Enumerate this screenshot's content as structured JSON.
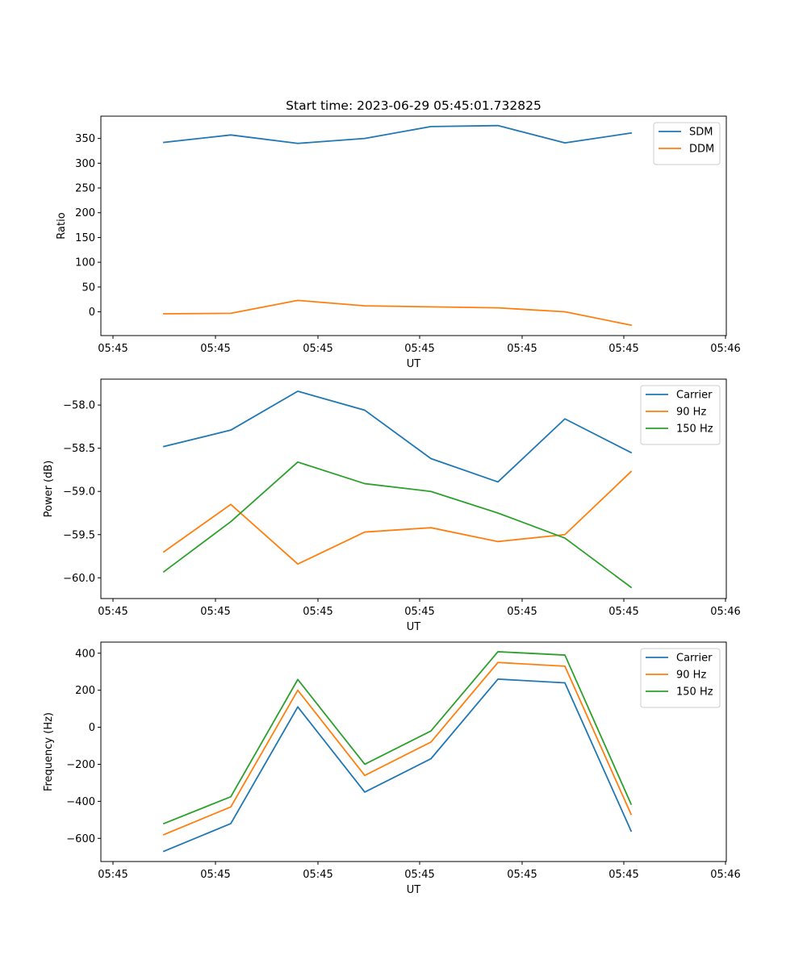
{
  "figure": {
    "title": "Start time: 2023-06-29 05:45:01.732825"
  },
  "chart_data": [
    {
      "type": "line",
      "xlabel": "UT",
      "ylabel": "Ratio",
      "x_tick_labels": [
        "05:45",
        "05:45",
        "05:45",
        "05:45",
        "05:45",
        "05:45",
        "05:46"
      ],
      "y_ticks": [
        0,
        50,
        100,
        150,
        200,
        250,
        300,
        350
      ],
      "ylim": [
        -48,
        395
      ],
      "legend": "top-right",
      "series": [
        {
          "name": "SDM",
          "color": "#1f77b4",
          "values": [
            342,
            357,
            340,
            350,
            374,
            376,
            341,
            361
          ]
        },
        {
          "name": "DDM",
          "color": "#ff7f0e",
          "values": [
            -4,
            -3,
            23,
            12,
            10,
            8,
            0,
            -27
          ]
        }
      ]
    },
    {
      "type": "line",
      "xlabel": "UT",
      "ylabel": "Power (dB)",
      "x_tick_labels": [
        "05:45",
        "05:45",
        "05:45",
        "05:45",
        "05:45",
        "05:45",
        "05:46"
      ],
      "y_ticks": [
        -60.0,
        -59.5,
        -59.0,
        -58.5,
        -58.0
      ],
      "y_tick_labels": [
        "−60.0",
        "−59.5",
        "−59.0",
        "−58.5",
        "−58.0"
      ],
      "ylim": [
        -60.24,
        -57.7
      ],
      "legend": "top-right",
      "series": [
        {
          "name": "Carrier",
          "color": "#1f77b4",
          "values": [
            -58.48,
            -58.29,
            -57.84,
            -58.06,
            -58.62,
            -58.89,
            -58.16,
            -58.55
          ]
        },
        {
          "name": "90 Hz",
          "color": "#ff7f0e",
          "values": [
            -59.7,
            -59.15,
            -59.84,
            -59.47,
            -59.42,
            -59.58,
            -59.5,
            -58.77
          ]
        },
        {
          "name": "150 Hz",
          "color": "#2ca02c",
          "values": [
            -59.93,
            -59.35,
            -58.66,
            -58.91,
            -59.0,
            -59.25,
            -59.54,
            -60.11
          ]
        }
      ]
    },
    {
      "type": "line",
      "xlabel": "UT",
      "ylabel": "Frequency (Hz)",
      "x_tick_labels": [
        "05:45",
        "05:45",
        "05:45",
        "05:45",
        "05:45",
        "05:45",
        "05:46"
      ],
      "y_ticks": [
        -600,
        -400,
        -200,
        0,
        200,
        400
      ],
      "y_tick_labels": [
        "−600",
        "−400",
        "−200",
        "0",
        "200",
        "400"
      ],
      "ylim": [
        -725,
        460
      ],
      "legend": "top-right",
      "series": [
        {
          "name": "Carrier",
          "color": "#1f77b4",
          "values": [
            -670,
            -520,
            110,
            -350,
            -170,
            260,
            240,
            -560
          ]
        },
        {
          "name": "90 Hz",
          "color": "#ff7f0e",
          "values": [
            -580,
            -430,
            200,
            -260,
            -80,
            350,
            330,
            -470
          ]
        },
        {
          "name": "150 Hz",
          "color": "#2ca02c",
          "values": [
            -520,
            -375,
            258,
            -200,
            -20,
            408,
            390,
            -415
          ]
        }
      ]
    }
  ]
}
